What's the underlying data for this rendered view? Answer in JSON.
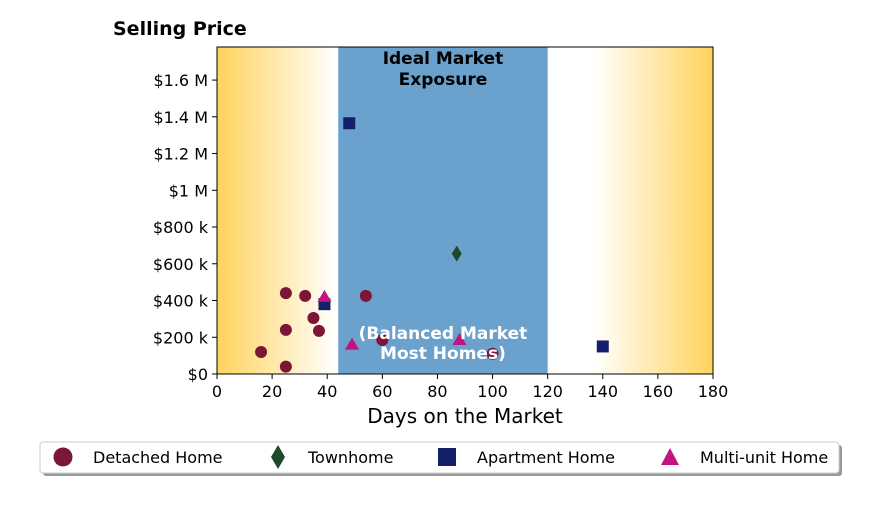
{
  "chart_data": {
    "type": "scatter",
    "title": "",
    "ylabel": "Selling Price",
    "xlabel": "Days on the Market",
    "xlim": [
      0,
      180
    ],
    "ylim": [
      0,
      1780000
    ],
    "x_ticks": [
      0,
      20,
      40,
      60,
      80,
      100,
      120,
      140,
      160,
      180
    ],
    "y_ticks": [
      {
        "value": 0,
        "label": "$0"
      },
      {
        "value": 200000,
        "label": "$200 k"
      },
      {
        "value": 400000,
        "label": "$400 k"
      },
      {
        "value": 600000,
        "label": "$600 k"
      },
      {
        "value": 800000,
        "label": "$800 k"
      },
      {
        "value": 1000000,
        "label": "$1 M"
      },
      {
        "value": 1200000,
        "label": "$1.2 M"
      },
      {
        "value": 1400000,
        "label": "$1.4 M"
      },
      {
        "value": 1600000,
        "label": "$1.6 M"
      }
    ],
    "grid": false,
    "legend_position": "bottom",
    "band": {
      "x_start": 44,
      "x_end": 120,
      "color": "#6aa2cd",
      "title_lines": [
        "Ideal Market",
        "Exposure"
      ],
      "note_lines": [
        "(Balanced Market",
        "Most Homes)"
      ]
    },
    "background_gradient": {
      "edge_color": "#ffd35c",
      "inner_color": "#ffffff"
    },
    "series": [
      {
        "name": "Detached Home",
        "marker": "circle",
        "color": "#7b1636",
        "points": [
          {
            "x": 16,
            "y": 120000
          },
          {
            "x": 25,
            "y": 40000
          },
          {
            "x": 25,
            "y": 240000
          },
          {
            "x": 25,
            "y": 440000
          },
          {
            "x": 32,
            "y": 425000
          },
          {
            "x": 35,
            "y": 305000
          },
          {
            "x": 37,
            "y": 235000
          },
          {
            "x": 54,
            "y": 425000
          },
          {
            "x": 60,
            "y": 185000
          },
          {
            "x": 100,
            "y": 110000
          }
        ]
      },
      {
        "name": "Townhome",
        "marker": "diamond",
        "color": "#1d4a2b",
        "points": [
          {
            "x": 87,
            "y": 655000
          }
        ]
      },
      {
        "name": "Apartment Home",
        "marker": "square",
        "color": "#14206a",
        "points": [
          {
            "x": 48,
            "y": 1365000
          },
          {
            "x": 39,
            "y": 380000
          },
          {
            "x": 140,
            "y": 150000
          }
        ]
      },
      {
        "name": "Multi-unit Home",
        "marker": "triangle",
        "color": "#c0147f",
        "points": [
          {
            "x": 39,
            "y": 420000
          },
          {
            "x": 49,
            "y": 160000
          },
          {
            "x": 88,
            "y": 185000
          }
        ]
      }
    ]
  }
}
